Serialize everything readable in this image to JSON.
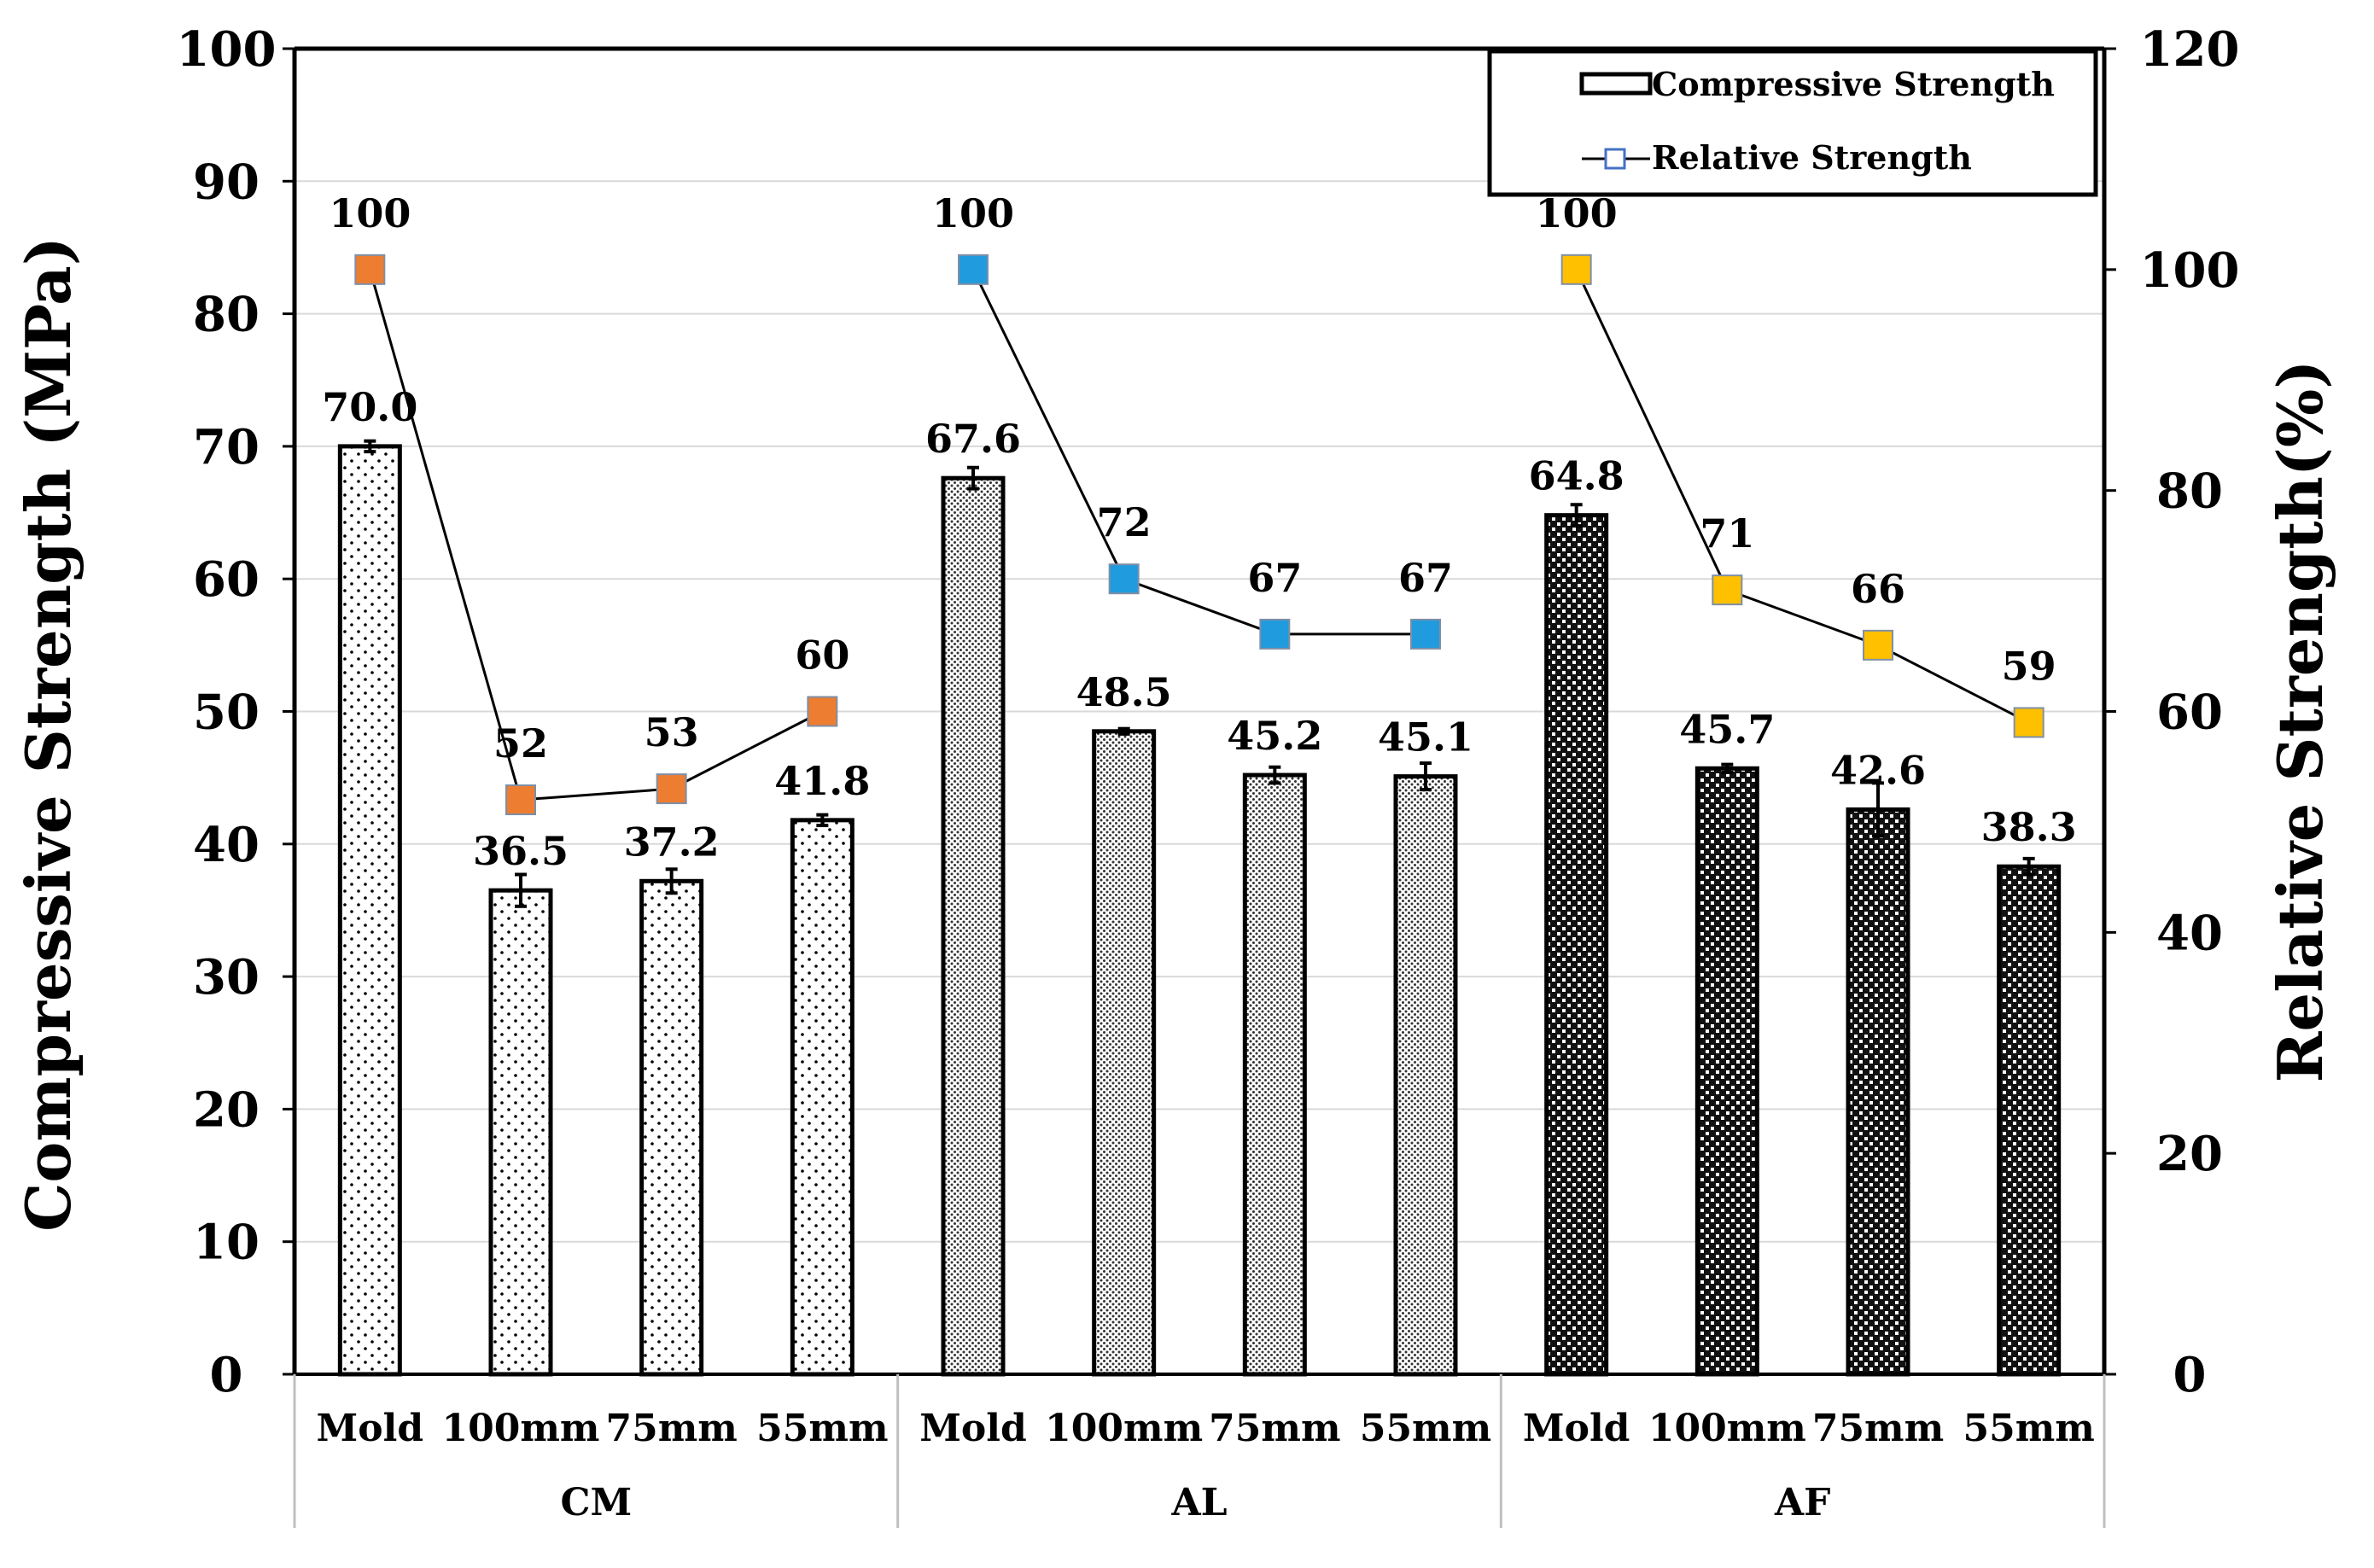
{
  "chart_data": {
    "type": "bar",
    "title": "",
    "ylabel": "Compressive Strength (MPa)",
    "y2label": "Relative Strength(%)",
    "ylim": [
      0,
      100
    ],
    "y2lim": [
      0,
      120
    ],
    "yticks": [
      "0",
      "10",
      "20",
      "30",
      "40",
      "50",
      "60",
      "70",
      "80",
      "90",
      "100"
    ],
    "y2ticks": [
      "0",
      "20",
      "40",
      "60",
      "80",
      "100",
      "120"
    ],
    "groups": [
      "CM",
      "AL",
      "AF"
    ],
    "categories": [
      "Mold",
      "100mm",
      "75mm",
      "55mm",
      "Mold",
      "100mm",
      "75mm",
      "55mm",
      "Mold",
      "100mm",
      "75mm",
      "55mm"
    ],
    "series": [
      {
        "name": "Compressive Strength",
        "type": "bar",
        "axis": "left",
        "values": [
          70.0,
          36.5,
          37.2,
          41.8,
          67.6,
          48.5,
          45.2,
          45.1,
          64.8,
          45.7,
          42.6,
          38.3
        ],
        "labels": [
          "70.0",
          "36.5",
          "37.2",
          "41.8",
          "67.6",
          "48.5",
          "45.2",
          "45.1",
          "64.8",
          "45.7",
          "42.6",
          "38.3"
        ],
        "errors": [
          0.4,
          1.2,
          0.9,
          0.4,
          0.8,
          0.2,
          0.6,
          1.0,
          0.8,
          0.3,
          2.0,
          0.6
        ],
        "patterns": [
          "sparse-dots",
          "sparse-dots",
          "sparse-dots",
          "sparse-dots",
          "dense-dots",
          "dense-dots",
          "dense-dots",
          "dense-dots",
          "black-check",
          "black-check",
          "black-check",
          "black-check"
        ]
      },
      {
        "name": "Relative Strength",
        "type": "line",
        "axis": "right",
        "values": [
          100,
          52,
          53,
          60,
          100,
          72,
          67,
          67,
          100,
          71,
          66,
          59
        ],
        "labels": [
          "100",
          "52",
          "53",
          "60",
          "100",
          "72",
          "67",
          "67",
          "100",
          "71",
          "66",
          "59"
        ]
      }
    ],
    "marker_colors": [
      "#ED7D31",
      "#1F9BDE",
      "#FFC000"
    ],
    "legend_position": "top-right"
  }
}
